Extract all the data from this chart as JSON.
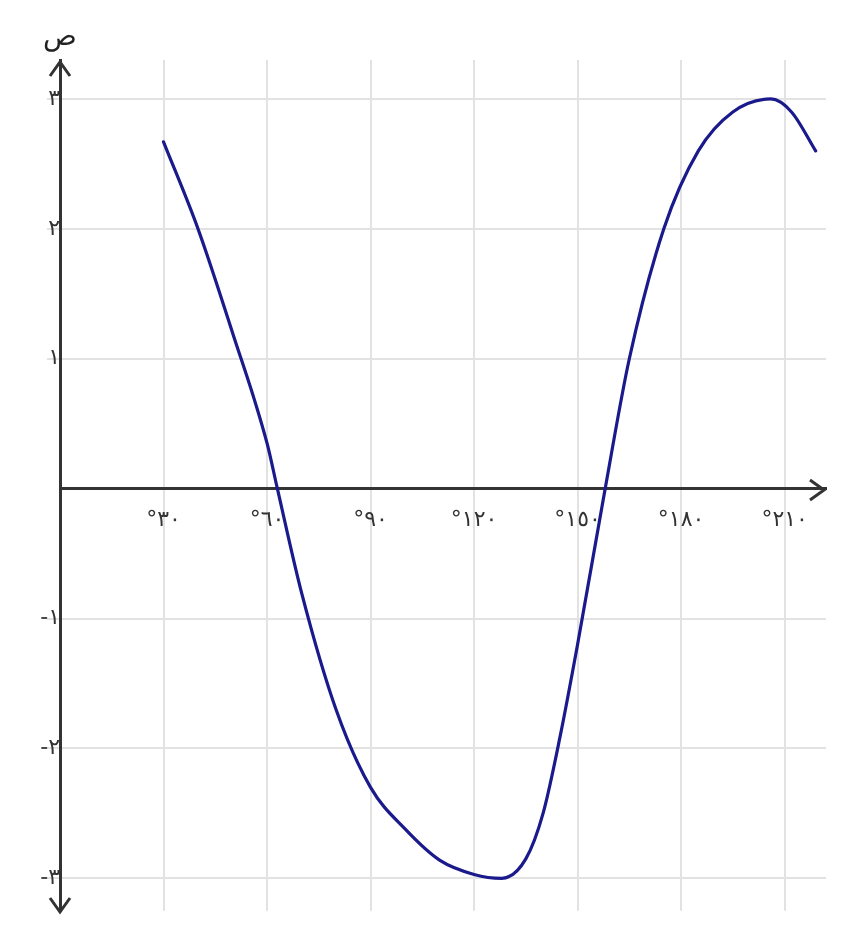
{
  "chart_data": {
    "type": "line",
    "ylabel": "ص",
    "x": [
      30,
      40,
      50,
      60,
      63,
      70,
      80,
      90,
      100,
      110,
      120,
      128,
      135,
      140,
      145,
      150,
      158,
      165,
      175,
      185,
      195,
      206,
      212,
      219
    ],
    "series": [
      {
        "color": "#1a1a8c",
        "values": [
          2.67,
          2.0,
          1.2,
          0.35,
          0,
          -0.8,
          -1.7,
          -2.3,
          -2.62,
          -2.86,
          -2.97,
          -3.0,
          -2.85,
          -2.5,
          -1.9,
          -1.2,
          0,
          1.0,
          2.0,
          2.6,
          2.9,
          3.0,
          2.9,
          2.6
        ]
      }
    ],
    "xlim": [
      0,
      222
    ],
    "ylim": [
      -3.25,
      3.3
    ],
    "xticks": [
      {
        "value": 30,
        "label": "°٣٠"
      },
      {
        "value": 60,
        "label": "°٦٠"
      },
      {
        "value": 90,
        "label": "°٩٠"
      },
      {
        "value": 120,
        "label": "°١٢٠"
      },
      {
        "value": 150,
        "label": "°١٥٠"
      },
      {
        "value": 180,
        "label": "°١٨٠"
      },
      {
        "value": 210,
        "label": "°٢١٠"
      }
    ],
    "yticks": [
      {
        "value": -3,
        "label": "-٣"
      },
      {
        "value": -2,
        "label": "-٢"
      },
      {
        "value": -1,
        "label": "-١"
      },
      {
        "value": 1,
        "label": "١"
      },
      {
        "value": 2,
        "label": "٢"
      },
      {
        "value": 3,
        "label": "٣"
      }
    ],
    "grid": true,
    "legend": false,
    "marker": "none",
    "line_style": "solid"
  }
}
